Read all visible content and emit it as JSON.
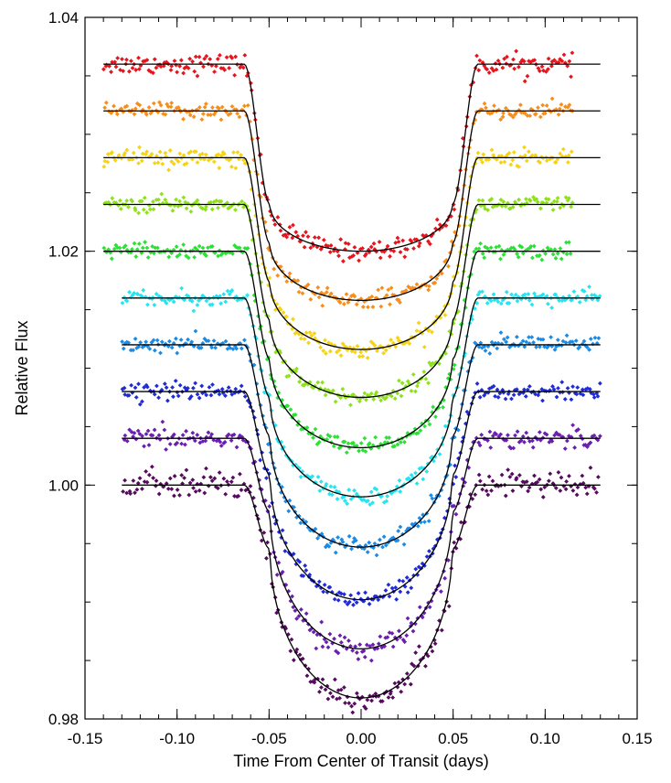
{
  "chart_data": {
    "type": "scatter",
    "title": "",
    "xlabel": "Time From Center of Transit (days)",
    "ylabel": "Relative Flux",
    "xlim": [
      -0.15,
      0.15
    ],
    "ylim": [
      0.98,
      1.04
    ],
    "xticks": [
      -0.15,
      -0.1,
      -0.05,
      0.0,
      0.05,
      0.1,
      0.15
    ],
    "xtick_labels": [
      "-0.15",
      "-0.10",
      "-0.05",
      "0.00",
      "0.05",
      "0.10",
      "0.15"
    ],
    "yticks": [
      0.98,
      1.0,
      1.02,
      1.04
    ],
    "ytick_labels": [
      "0.98",
      "1.00",
      "1.02",
      "1.04"
    ],
    "yminor_step": 0.005,
    "xminor_step": 0.01,
    "grid": false,
    "legend": "none",
    "transit": {
      "t1": 0.0635,
      "t2": 0.0495
    },
    "series": [
      {
        "baseline": 1.036,
        "depth": 0.016,
        "limb_shape": 0.25,
        "x_range": [
          -0.14,
          0.115
        ],
        "model_range": [
          -0.14,
          0.13
        ],
        "noise": 0.00042,
        "color": "#e8141d"
      },
      {
        "baseline": 1.032,
        "depth": 0.0162,
        "limb_shape": 0.3,
        "x_range": [
          -0.14,
          0.115
        ],
        "model_range": [
          -0.14,
          0.13
        ],
        "noise": 0.00035,
        "color": "#f88d1a"
      },
      {
        "baseline": 1.028,
        "depth": 0.0164,
        "limb_shape": 0.35,
        "x_range": [
          -0.14,
          0.115
        ],
        "model_range": [
          -0.14,
          0.13
        ],
        "noise": 0.00035,
        "color": "#f6d313"
      },
      {
        "baseline": 1.024,
        "depth": 0.0165,
        "limb_shape": 0.4,
        "x_range": [
          -0.14,
          0.115
        ],
        "model_range": [
          -0.14,
          0.13
        ],
        "noise": 0.00035,
        "color": "#8ee21c"
      },
      {
        "baseline": 1.02,
        "depth": 0.0168,
        "limb_shape": 0.45,
        "x_range": [
          -0.14,
          0.115
        ],
        "model_range": [
          -0.14,
          0.13
        ],
        "noise": 0.00035,
        "color": "#2be135"
      },
      {
        "baseline": 1.016,
        "depth": 0.017,
        "limb_shape": 0.5,
        "x_range": [
          -0.13,
          0.13
        ],
        "model_range": [
          -0.13,
          0.13
        ],
        "noise": 0.00035,
        "color": "#24e5f0"
      },
      {
        "baseline": 1.012,
        "depth": 0.0173,
        "limb_shape": 0.55,
        "x_range": [
          -0.13,
          0.13
        ],
        "model_range": [
          -0.13,
          0.13
        ],
        "noise": 0.00035,
        "color": "#1a8be6"
      },
      {
        "baseline": 1.008,
        "depth": 0.0178,
        "limb_shape": 0.6,
        "x_range": [
          -0.13,
          0.13
        ],
        "model_range": [
          -0.13,
          0.13
        ],
        "noise": 0.00035,
        "color": "#1f2bd8"
      },
      {
        "baseline": 1.004,
        "depth": 0.018,
        "limb_shape": 0.65,
        "x_range": [
          -0.13,
          0.13
        ],
        "model_range": [
          -0.13,
          0.13
        ],
        "noise": 0.00045,
        "color": "#6a1fb0"
      },
      {
        "baseline": 1.0,
        "depth": 0.0182,
        "limb_shape": 0.7,
        "x_range": [
          -0.13,
          0.13
        ],
        "model_range": [
          -0.13,
          0.13
        ],
        "noise": 0.0006,
        "color": "#560b5e"
      }
    ]
  }
}
